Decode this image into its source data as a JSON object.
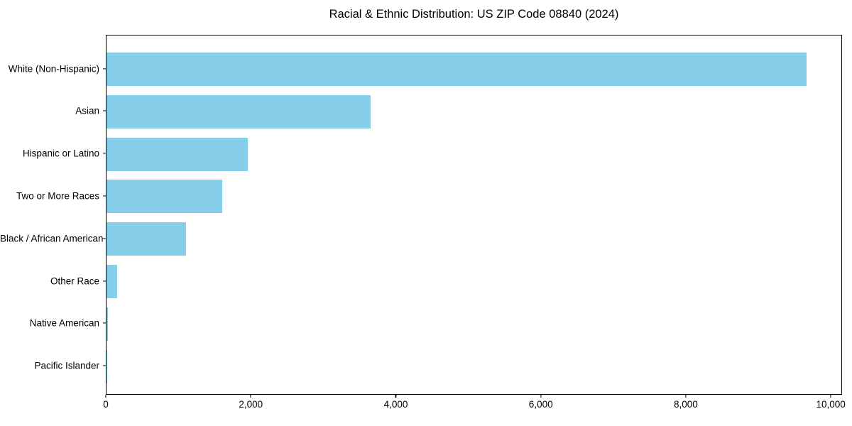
{
  "title": "Racial & Ethnic Distribution: US ZIP Code 08840 (2024)",
  "colors": {
    "bar": "#87CEEB",
    "axis": "#000000",
    "text": "#000000",
    "background": "#FFFFFF"
  },
  "chart_data": {
    "type": "bar",
    "orientation": "horizontal",
    "title": "Racial & Ethnic Distribution: US ZIP Code 08840 (2024)",
    "xlabel": "",
    "ylabel": "",
    "categories": [
      "White (Non-Hispanic)",
      "Asian",
      "Hispanic or Latino",
      "Two or More Races",
      "Black / African American",
      "Other Race",
      "Native American",
      "Pacific Islander"
    ],
    "values": [
      9670,
      3650,
      1950,
      1600,
      1100,
      150,
      20,
      5
    ],
    "xlim": [
      0,
      10155
    ],
    "xticks": [
      0,
      2000,
      4000,
      6000,
      8000,
      10000
    ],
    "xtick_labels": [
      "0",
      "2,000",
      "4,000",
      "6,000",
      "8,000",
      "10,000"
    ],
    "bar_color": "#87CEEB",
    "grid": false,
    "legend": null
  }
}
